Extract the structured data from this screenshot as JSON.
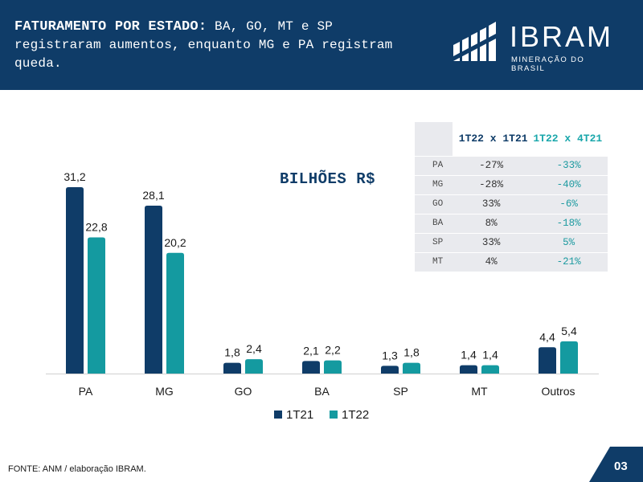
{
  "header": {
    "title_bold": "FATURAMENTO POR ESTADO:",
    "title_rest": " BA, GO, MT e SP registraram aumentos, enquanto MG e PA registram queda."
  },
  "logo": {
    "name": "IBRAM",
    "subtitle": "MINERAÇÃO DO BRASIL",
    "icon": "ibram-logo-mark"
  },
  "chart_data": {
    "type": "bar",
    "title": "",
    "unit_label": "BILHÕES R$",
    "categories": [
      "PA",
      "MG",
      "GO",
      "BA",
      "SP",
      "MT",
      "Outros"
    ],
    "series": [
      {
        "name": "1T21",
        "color": "#0f3c68",
        "values": [
          31.2,
          28.1,
          1.8,
          2.1,
          1.3,
          1.4,
          4.4
        ],
        "labels": [
          "31,2",
          "28,1",
          "1,8",
          "2,1",
          "1,3",
          "1,4",
          "4,4"
        ]
      },
      {
        "name": "1T22",
        "color": "#149aa0",
        "values": [
          22.8,
          20.2,
          2.4,
          2.2,
          1.8,
          1.4,
          5.4
        ],
        "labels": [
          "22,8",
          "20,2",
          "2,4",
          "2,2",
          "1,8",
          "1,4",
          "5,4"
        ]
      }
    ],
    "ylim": [
      0,
      31.2
    ],
    "grid": false,
    "legend": "bottom"
  },
  "table": {
    "header": [
      "",
      "1T22 x 1T21",
      "1T22 x 4T21"
    ],
    "rows": [
      [
        "PA",
        "-27%",
        "-33%"
      ],
      [
        "MG",
        "-28%",
        "-40%"
      ],
      [
        "GO",
        "33%",
        "-6%"
      ],
      [
        "BA",
        "8%",
        "-18%"
      ],
      [
        "SP",
        "33%",
        "5%"
      ],
      [
        "MT",
        "4%",
        "-21%"
      ]
    ]
  },
  "footer": {
    "source": "FONTE: ANM / elaboração IBRAM.",
    "page": "03"
  }
}
